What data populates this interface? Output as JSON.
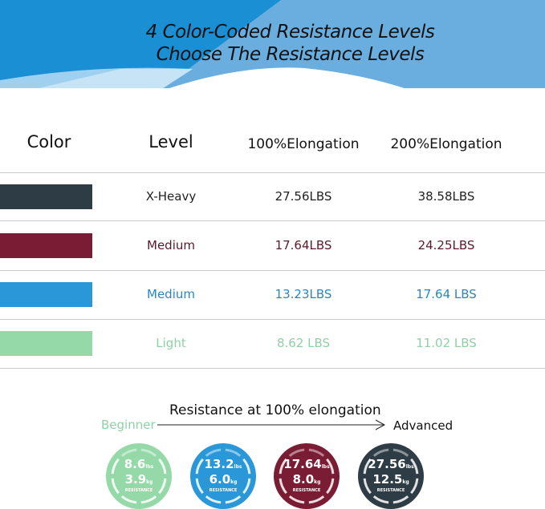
{
  "banner": {
    "line1": "4 Color-Coded Resistance Levels",
    "line2": "Choose The Resistance Levels"
  },
  "table": {
    "headers": [
      "Color",
      "Level",
      "100%Elongation",
      "200%Elongation"
    ],
    "rows": [
      {
        "color": "#2e3d45",
        "text_color": "#222222",
        "level": "X-Heavy",
        "e100": "27.56LBS",
        "e200": "38.58LBS"
      },
      {
        "color": "#7a1c33",
        "text_color": "#5a1a28",
        "level": "Medium",
        "e100": "17.64LBS",
        "e200": "24.25LBS"
      },
      {
        "color": "#2a97d8",
        "text_color": "#2a86bf",
        "level": "Medium",
        "e100": "13.23LBS",
        "e200": "17.64 LBS"
      },
      {
        "color": "#96d9a8",
        "text_color": "#8fd1a6",
        "level": "Light",
        "e100": "8.62 LBS",
        "e200": "11.02 LBS"
      }
    ]
  },
  "scale": {
    "start": "Beginner",
    "end": "Advanced",
    "caption": "Resistance at 100% elongation"
  },
  "circles": [
    {
      "color": "#96d9a8",
      "lbs": "8.6",
      "kg": "3.9",
      "lbs_unit": "lbs",
      "kg_unit": "kg",
      "label": "RESISTANCE"
    },
    {
      "color": "#2a97d8",
      "lbs": "13.2",
      "kg": "6.0",
      "lbs_unit": "lbs",
      "kg_unit": "kg",
      "label": "RESISTANCE"
    },
    {
      "color": "#7a1c33",
      "lbs": "17.64",
      "kg": "8.0",
      "lbs_unit": "lbs",
      "kg_unit": "kg",
      "label": "RESISTANCE"
    },
    {
      "color": "#2e3d45",
      "lbs": "27.56",
      "kg": "12.5",
      "lbs_unit": "lbs",
      "kg_unit": "kg",
      "label": "RESISTANCE"
    }
  ]
}
